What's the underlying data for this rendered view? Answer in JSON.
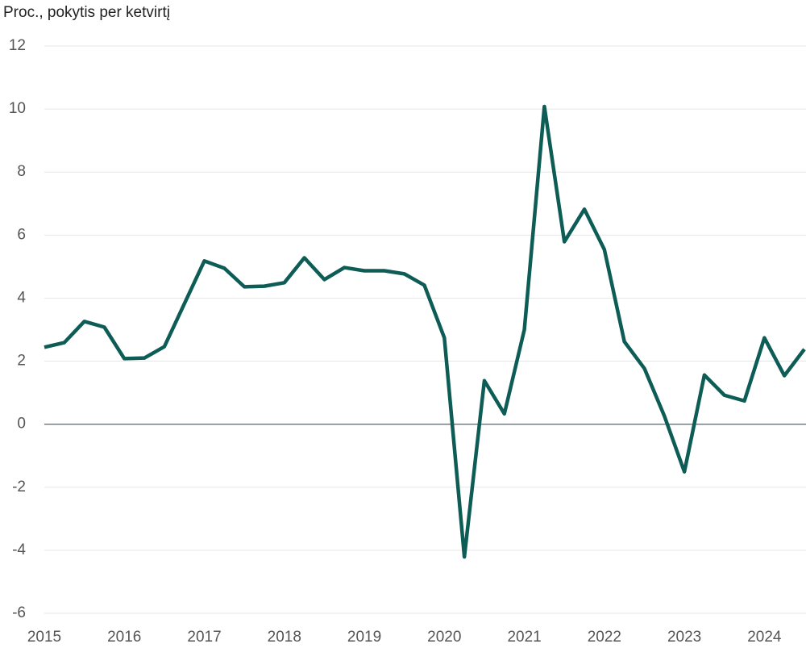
{
  "chart_data": {
    "type": "line",
    "y_axis_label": "Proc., pokytis per ketvirtį",
    "x": [
      2015,
      2015.25,
      2015.5,
      2015.75,
      2016,
      2016.25,
      2016.5,
      2016.75,
      2017,
      2017.25,
      2017.5,
      2017.75,
      2018,
      2018.25,
      2018.5,
      2018.75,
      2019,
      2019.25,
      2019.5,
      2019.75,
      2020,
      2020.25,
      2020.5,
      2020.75,
      2021,
      2021.25,
      2021.5,
      2021.75,
      2022,
      2022.25,
      2022.5,
      2022.75,
      2023,
      2023.25,
      2023.5,
      2023.75,
      2024,
      2024.25,
      2024.5
    ],
    "series": [
      {
        "color": "#0d5c55",
        "values": [
          2.44,
          2.59,
          3.26,
          3.08,
          2.08,
          2.1,
          2.46,
          3.82,
          5.18,
          4.95,
          4.36,
          4.38,
          4.49,
          5.28,
          4.59,
          4.97,
          4.87,
          4.87,
          4.77,
          4.41,
          2.74,
          -4.21,
          1.38,
          0.33,
          3.0,
          10.08,
          5.79,
          6.82,
          5.54,
          2.62,
          1.77,
          0.26,
          -1.51,
          1.56,
          0.92,
          0.74,
          2.74,
          1.54,
          2.38
        ]
      }
    ],
    "xlim": [
      2015,
      2024.5
    ],
    "xticks": [
      2015,
      2016,
      2017,
      2018,
      2019,
      2020,
      2021,
      2022,
      2023,
      2024
    ],
    "ylim": [
      -6,
      12
    ],
    "yticks": [
      -6,
      -4,
      -2,
      0,
      2,
      4,
      6,
      8,
      10,
      12
    ],
    "grid": true
  }
}
